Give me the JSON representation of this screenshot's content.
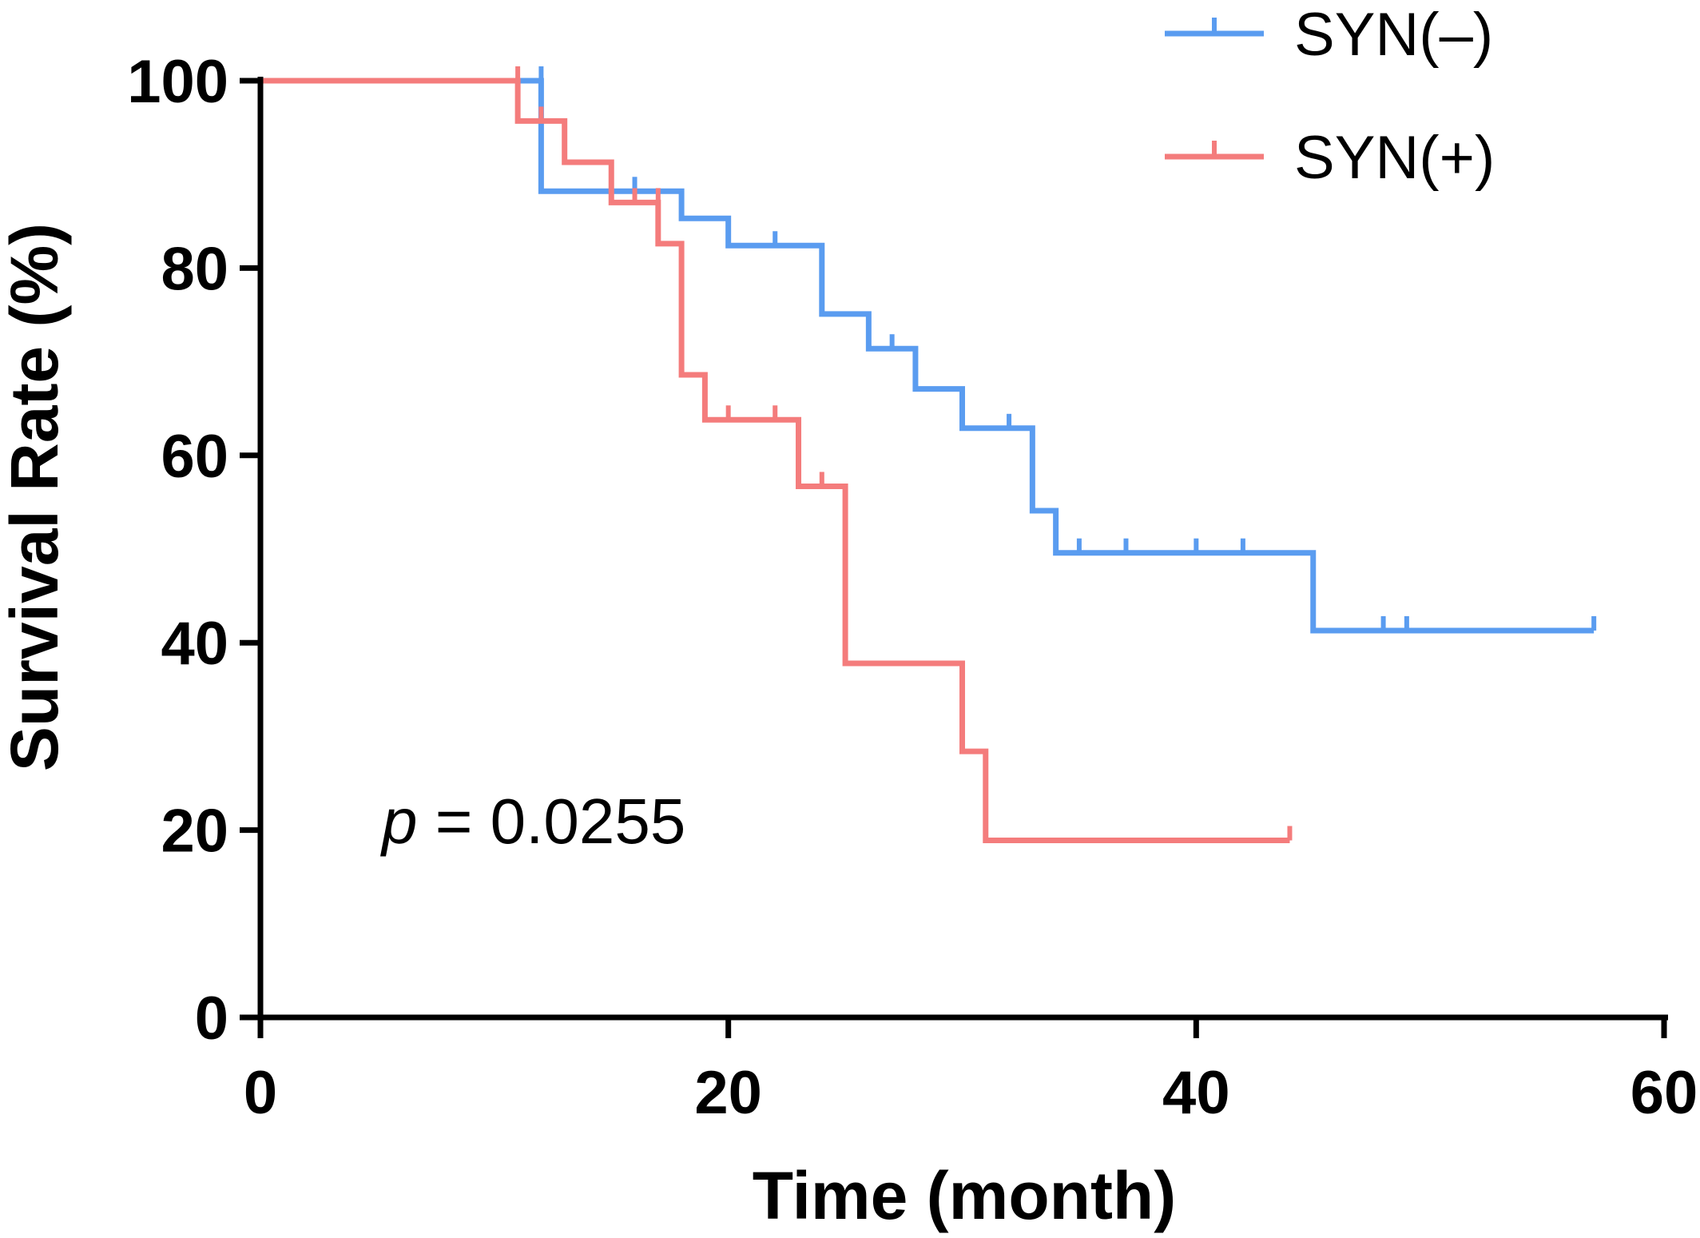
{
  "chart_data": {
    "type": "line",
    "subtype": "kaplan-meier-step",
    "title": "",
    "xlabel": "Time (month)",
    "ylabel": "Survival Rate (%)",
    "xlim": [
      0,
      60
    ],
    "ylim": [
      0,
      100
    ],
    "xticks": [
      "0",
      "20",
      "40",
      "60"
    ],
    "yticks": [
      "0",
      "20",
      "40",
      "60",
      "80",
      "100"
    ],
    "grid": false,
    "legend_position": "top-right",
    "annotation": {
      "prefix": "p",
      "text": " = 0.0255"
    },
    "series": [
      {
        "name": "SYN(–)",
        "color": "#5a9cf0",
        "steps": [
          [
            0,
            100
          ],
          [
            12,
            88.2
          ],
          [
            18,
            85.3
          ],
          [
            20,
            82.4
          ],
          [
            24,
            75.1
          ],
          [
            26,
            71.4
          ],
          [
            28,
            67.1
          ],
          [
            30,
            62.9
          ],
          [
            33,
            54.1
          ],
          [
            34,
            49.6
          ],
          [
            45,
            41.3
          ]
        ],
        "end_x": 57,
        "censors": [
          [
            12,
            100
          ],
          [
            16,
            88.2
          ],
          [
            22,
            82.4
          ],
          [
            27,
            71.4
          ],
          [
            32,
            62.9
          ],
          [
            35,
            49.6
          ],
          [
            37,
            49.6
          ],
          [
            40,
            49.6
          ],
          [
            42,
            49.6
          ],
          [
            48,
            41.3
          ],
          [
            49,
            41.3
          ],
          [
            57,
            41.3
          ]
        ]
      },
      {
        "name": "SYN(+)",
        "color": "#f47c7c",
        "steps": [
          [
            0,
            100
          ],
          [
            11,
            95.7
          ],
          [
            13,
            91.3
          ],
          [
            15,
            87.0
          ],
          [
            17,
            82.6
          ],
          [
            18,
            68.6
          ],
          [
            19,
            63.8
          ],
          [
            23,
            56.7
          ],
          [
            25,
            37.8
          ],
          [
            30,
            28.4
          ],
          [
            31,
            18.9
          ]
        ],
        "end_x": 44,
        "censors": [
          [
            11,
            100
          ],
          [
            12,
            95.7
          ],
          [
            16,
            87.0
          ],
          [
            17,
            87.0
          ],
          [
            20,
            63.8
          ],
          [
            22,
            63.8
          ],
          [
            24,
            56.7
          ],
          [
            44,
            18.9
          ]
        ]
      }
    ]
  }
}
